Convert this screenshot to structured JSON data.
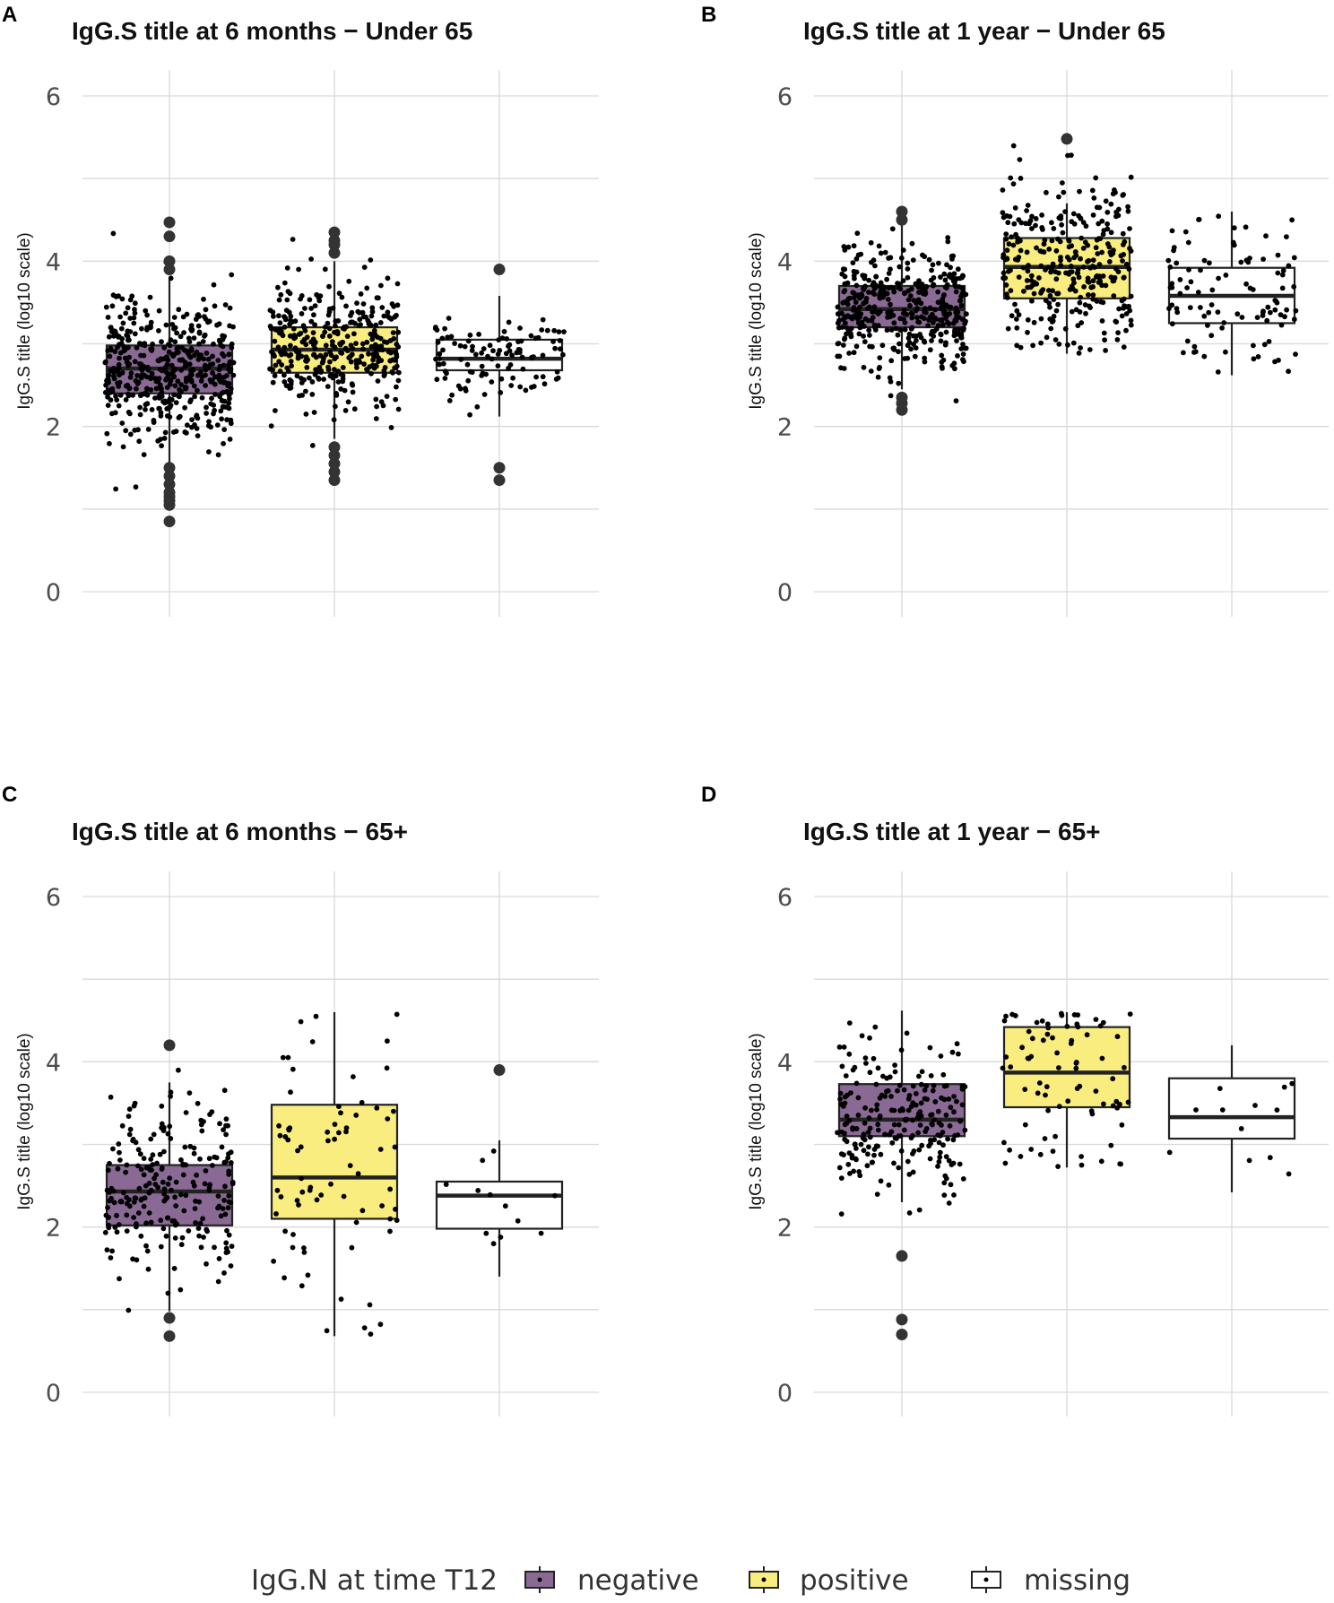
{
  "chart_data": [
    {
      "panel": "A",
      "type": "boxplot",
      "title": "IgG.S title at 6 months − Under 65",
      "ylabel": "IgG.S title (log10 scale)",
      "xlabel": "",
      "ylim": [
        0,
        6.2
      ],
      "yticks": [
        "0",
        "2",
        "4",
        "6"
      ],
      "grid": true,
      "groups": [
        {
          "name": "negative",
          "q1": 2.4,
          "median": 2.7,
          "q3": 2.98,
          "whisker_low": 1.55,
          "whisker_high": 3.8,
          "outliers": [
            0.85,
            1.05,
            1.1,
            1.15,
            1.2,
            1.3,
            1.4,
            1.5,
            3.9,
            4.0,
            4.3,
            4.47
          ],
          "n_points": 480
        },
        {
          "name": "positive",
          "q1": 2.65,
          "median": 2.93,
          "q3": 3.2,
          "whisker_low": 1.85,
          "whisker_high": 4.0,
          "outliers": [
            1.35,
            1.45,
            1.55,
            1.65,
            1.75,
            4.1,
            4.2,
            4.25,
            4.35
          ],
          "n_points": 360
        },
        {
          "name": "missing",
          "q1": 2.68,
          "median": 2.82,
          "q3": 3.05,
          "whisker_low": 2.12,
          "whisker_high": 3.58,
          "outliers": [
            1.35,
            1.5,
            3.9
          ],
          "n_points": 110
        }
      ]
    },
    {
      "panel": "B",
      "type": "boxplot",
      "title": "IgG.S title at 1 year − Under 65",
      "ylabel": "IgG.S title (log10 scale)",
      "xlabel": "",
      "ylim": [
        0,
        6.2
      ],
      "yticks": [
        "0",
        "2",
        "4",
        "6"
      ],
      "grid": true,
      "groups": [
        {
          "name": "negative",
          "q1": 3.2,
          "median": 3.42,
          "q3": 3.7,
          "whisker_low": 2.45,
          "whisker_high": 4.45,
          "outliers": [
            2.2,
            2.28,
            2.35,
            4.5,
            4.6
          ],
          "n_points": 420
        },
        {
          "name": "positive",
          "q1": 3.55,
          "median": 3.93,
          "q3": 4.28,
          "whisker_low": 2.88,
          "whisker_high": 4.7,
          "outliers": [
            5.48
          ],
          "n_points": 320
        },
        {
          "name": "missing",
          "q1": 3.25,
          "median": 3.58,
          "q3": 3.92,
          "whisker_low": 2.62,
          "whisker_high": 4.6,
          "outliers": [],
          "n_points": 100
        }
      ]
    },
    {
      "panel": "C",
      "type": "boxplot",
      "title": "IgG.S title at 6 months − 65+",
      "ylabel": "IgG.S title (log10 scale)",
      "xlabel": "",
      "ylim": [
        0,
        6.2
      ],
      "yticks": [
        "0",
        "2",
        "4",
        "6"
      ],
      "grid": true,
      "groups": [
        {
          "name": "negative",
          "q1": 2.02,
          "median": 2.43,
          "q3": 2.75,
          "whisker_low": 0.98,
          "whisker_high": 3.75,
          "outliers": [
            0.68,
            0.9,
            4.2
          ],
          "n_points": 230
        },
        {
          "name": "positive",
          "q1": 2.1,
          "median": 2.6,
          "q3": 3.48,
          "whisker_low": 0.68,
          "whisker_high": 4.6,
          "outliers": [],
          "n_points": 75
        },
        {
          "name": "missing",
          "q1": 1.98,
          "median": 2.38,
          "q3": 2.55,
          "whisker_low": 1.4,
          "whisker_high": 3.05,
          "outliers": [
            3.9
          ],
          "n_points": 12
        }
      ]
    },
    {
      "panel": "D",
      "type": "boxplot",
      "title": "IgG.S title at 1 year − 65+",
      "ylabel": "IgG.S title (log10 scale)",
      "xlabel": "",
      "ylim": [
        0,
        6.2
      ],
      "yticks": [
        "0",
        "2",
        "4",
        "6"
      ],
      "grid": true,
      "groups": [
        {
          "name": "negative",
          "q1": 3.1,
          "median": 3.3,
          "q3": 3.73,
          "whisker_low": 2.3,
          "whisker_high": 4.62,
          "outliers": [
            0.7,
            0.88,
            1.65
          ],
          "n_points": 230
        },
        {
          "name": "positive",
          "q1": 3.45,
          "median": 3.87,
          "q3": 4.42,
          "whisker_low": 2.72,
          "whisker_high": 4.6,
          "outliers": [],
          "n_points": 80
        },
        {
          "name": "missing",
          "q1": 3.07,
          "median": 3.33,
          "q3": 3.8,
          "whisker_low": 2.42,
          "whisker_high": 4.2,
          "outliers": [],
          "n_points": 12
        }
      ]
    }
  ],
  "legend": {
    "title": "IgG.N at time T12",
    "position": "bottom",
    "items": [
      {
        "label": "negative",
        "color": "#8a6a95"
      },
      {
        "label": "positive",
        "color": "#f9ed7f"
      },
      {
        "label": "missing",
        "color": "#ffffff"
      }
    ]
  },
  "colors": {
    "box_stroke": "#222222",
    "point": "#000000",
    "outlier": "#333333"
  }
}
